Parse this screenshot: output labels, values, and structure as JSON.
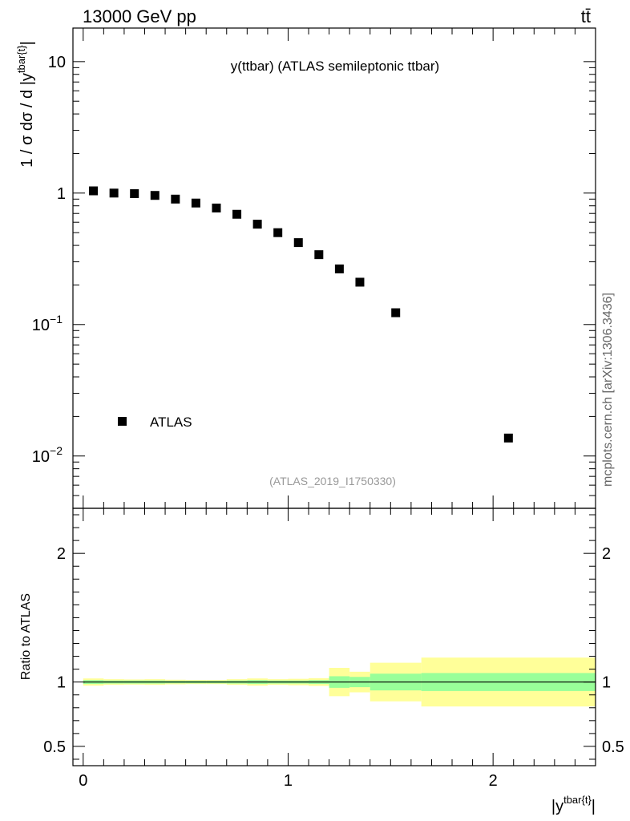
{
  "header": {
    "energy_label": "13000 GeV pp",
    "process_label": "tt̄"
  },
  "side_label": "mcplots.cern.ch [arXiv:1306.3436]",
  "chart_data": [
    {
      "type": "scatter",
      "panel": "main",
      "title": "y(ttbar) (ATLAS semileptonic ttbar)",
      "ylabel": "1 / σ dσ / d |y^{tbar{t}}|",
      "ylabel_parts": {
        "main": "1 / σ dσ / d |y",
        "sup": "tbar{t}",
        "end": "|"
      },
      "yscale": "log",
      "ylim": [
        0.004,
        18
      ],
      "xlim": [
        -0.05,
        2.5
      ],
      "y_ticks": [
        {
          "value": 10,
          "label": "10",
          "exp": ""
        },
        {
          "value": 1,
          "label": "1",
          "exp": ""
        },
        {
          "value": 0.1,
          "label": "10",
          "exp": "−1"
        },
        {
          "value": 0.01,
          "label": "10",
          "exp": "−2"
        }
      ],
      "analysis_label": "(ATLAS_2019_I1750330)",
      "legend": {
        "placement": "left-bottom",
        "entries": [
          "ATLAS"
        ]
      },
      "series": [
        {
          "name": "ATLAS",
          "x": [
            0.05,
            0.15,
            0.25,
            0.35,
            0.45,
            0.55,
            0.65,
            0.75,
            0.85,
            0.95,
            1.05,
            1.15,
            1.25,
            1.35,
            1.525,
            2.075
          ],
          "y": [
            1.04,
            1.0,
            0.99,
            0.96,
            0.9,
            0.84,
            0.77,
            0.69,
            0.58,
            0.5,
            0.42,
            0.34,
            0.265,
            0.21,
            0.123,
            0.0137
          ]
        }
      ]
    },
    {
      "type": "area",
      "panel": "ratio",
      "ylabel": "Ratio to ATLAS",
      "xlabel": "|y^{tbar{t}}|",
      "xlabel_parts": {
        "main": "|y",
        "sup": "tbar{t}",
        "end": "|"
      },
      "ylim": [
        0.35,
        2.35
      ],
      "xlim": [
        -0.05,
        2.5
      ],
      "y_ticks": [
        {
          "value": 2,
          "label": "2"
        },
        {
          "value": 1,
          "label": "1"
        },
        {
          "value": 0.5,
          "label": "0.5"
        }
      ],
      "x_ticks": [
        {
          "value": 0,
          "label": "0"
        },
        {
          "value": 1,
          "label": "1"
        },
        {
          "value": 2,
          "label": "2"
        }
      ],
      "reference_line": 1,
      "bins": [
        0,
        0.1,
        0.2,
        0.3,
        0.4,
        0.5,
        0.6,
        0.7,
        0.8,
        0.9,
        1.0,
        1.1,
        1.2,
        1.3,
        1.4,
        1.65,
        2.5
      ],
      "band_inner": [
        0.015,
        0.012,
        0.012,
        0.012,
        0.01,
        0.01,
        0.01,
        0.012,
        0.015,
        0.012,
        0.012,
        0.015,
        0.045,
        0.04,
        0.065,
        0.07
      ],
      "band_outer": [
        0.028,
        0.022,
        0.02,
        0.022,
        0.018,
        0.016,
        0.016,
        0.022,
        0.028,
        0.022,
        0.025,
        0.03,
        0.11,
        0.08,
        0.15,
        0.19
      ],
      "band_inner_color": "#99ff99",
      "band_outer_color": "#ffff99"
    }
  ]
}
